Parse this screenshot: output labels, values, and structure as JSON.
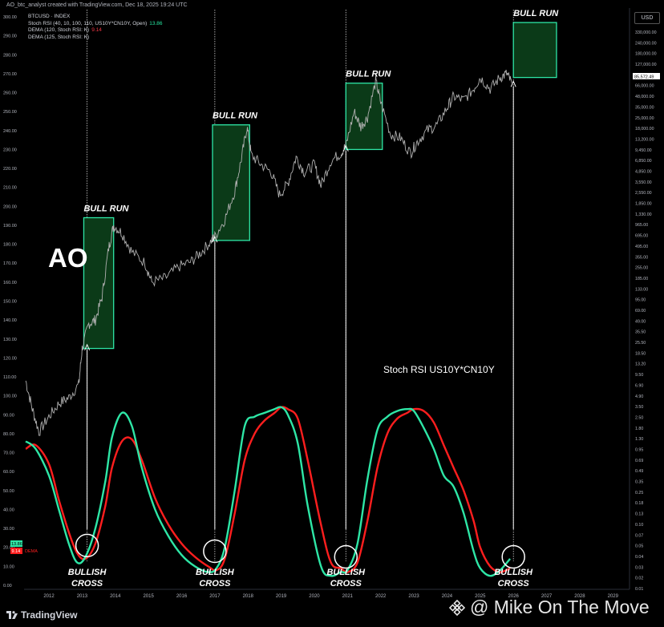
{
  "header": {
    "credit": "AO_btc_analyst created with TradingView.com, Dec 18, 2025 19:24 UTC",
    "currency_badge": "USD"
  },
  "legend": {
    "symbol": "BTCUSD · INDEX",
    "stoch": "Stoch RSI (40, 10, 100, 110, US10Y*CN10Y, Open)",
    "stoch_value": "13.86",
    "dema1": "DEMA (120, Stoch RSI: K)",
    "dema1_value": "9.14",
    "dema2": "DEMA (125, Stoch RSI: K)"
  },
  "annotations": {
    "bull_run": "BULL RUN",
    "bullish_cross_line1": "BULLISH",
    "bullish_cross_line2": "CROSS",
    "ao": "AO",
    "indicator_label": "Stoch RSI US10Y*CN10Y"
  },
  "badges": {
    "stoch_value": "13.86",
    "dema_value": "9.14",
    "dema_name": "DEMA",
    "price_now": "85,572.49"
  },
  "footer": {
    "brand": "TradingView",
    "watermark": "@ Mike On The Move"
  },
  "colors": {
    "stoch_line": "#2ee6a6",
    "dema_line": "#ff1e1e",
    "bull_box_fill": "#0b3a18",
    "bull_box_border": "#2ee6a6",
    "price_line": "#b0b0b0"
  },
  "chart_data": {
    "type": "line",
    "x_axis": {
      "label": "",
      "ticks": [
        "2012",
        "2013",
        "2014",
        "2015",
        "2016",
        "2017",
        "2018",
        "2019",
        "2020",
        "2021",
        "2022",
        "2023",
        "2024",
        "2025",
        "2026",
        "2027",
        "2028",
        "2029"
      ],
      "range": [
        2011.25,
        2029.5
      ]
    },
    "y_axis_left": {
      "scale": "linear",
      "range": [
        0,
        300
      ],
      "ticks": [
        "0.00",
        "10.00",
        "20.00",
        "30.00",
        "40.00",
        "50.00",
        "60.00",
        "70.00",
        "80.00",
        "90.00",
        "100.00",
        "110.00",
        "120.00",
        "130.00",
        "140.00",
        "150.00",
        "160.00",
        "170.00",
        "180.00",
        "190.00",
        "200.00",
        "210.00",
        "220.00",
        "230.00",
        "240.00",
        "250.00",
        "260.00",
        "270.00",
        "280.00",
        "290.00",
        "300.00"
      ]
    },
    "y_axis_right": {
      "scale": "log",
      "ticks": [
        "330,000.00",
        "240,000.00",
        "180,000.00",
        "127,000.00",
        "90,000.00",
        "66,000.00",
        "48,000.00",
        "35,000.00",
        "25,000.00",
        "18,000.00",
        "13,200.00",
        "9,450.00",
        "6,850.00",
        "4,850.00",
        "3,550.00",
        "2,550.00",
        "1,850.00",
        "1,330.00",
        "965.00",
        "695.00",
        "495.00",
        "355.00",
        "255.00",
        "185.00",
        "133.00",
        "95.00",
        "69.00",
        "49.00",
        "35.50",
        "25.50",
        "18.50",
        "13.20",
        "9.50",
        "6.90",
        "4.90",
        "3.50",
        "2.50",
        "1.80",
        "1.30",
        "0.95",
        "0.69",
        "0.49",
        "0.35",
        "0.25",
        "0.18",
        "0.13",
        "0.10",
        "0.07",
        "0.05",
        "0.04",
        "0.03",
        "0.02",
        "0.01"
      ]
    },
    "series": [
      {
        "name": "Stoch RSI",
        "x": [
          2011.3,
          2011.6,
          2012.0,
          2012.3,
          2012.6,
          2012.85,
          2013.1,
          2013.4,
          2013.7,
          2013.9,
          2014.2,
          2014.5,
          2014.8,
          2015.2,
          2015.6,
          2016.0,
          2016.4,
          2016.8,
          2017.05,
          2017.3,
          2017.6,
          2017.9,
          2018.2,
          2018.5,
          2018.8,
          2019.0,
          2019.2,
          2019.5,
          2019.8,
          2020.2,
          2020.5,
          2020.8,
          2021.0,
          2021.3,
          2021.6,
          2021.9,
          2022.2,
          2022.5,
          2022.8,
          2023.0,
          2023.3,
          2023.6,
          2023.9,
          2024.2,
          2024.5,
          2024.8,
          2025.0,
          2025.3,
          2025.6,
          2025.9
        ],
        "values": [
          76,
          72,
          58,
          40,
          22,
          12,
          15,
          30,
          55,
          78,
          91,
          84,
          62,
          40,
          26,
          16,
          10,
          7,
          9,
          20,
          50,
          84,
          89,
          91,
          93,
          94,
          90,
          75,
          42,
          10,
          5,
          7,
          8,
          22,
          56,
          82,
          89,
          92,
          93,
          92,
          83,
          72,
          58,
          52,
          38,
          18,
          9,
          5,
          8,
          14
        ]
      },
      {
        "name": "DEMA",
        "x": [
          2011.3,
          2011.6,
          2012.0,
          2012.3,
          2012.6,
          2012.85,
          2013.1,
          2013.4,
          2013.7,
          2013.9,
          2014.2,
          2014.5,
          2014.8,
          2015.2,
          2015.6,
          2016.0,
          2016.4,
          2016.8,
          2017.05,
          2017.3,
          2017.6,
          2017.9,
          2018.2,
          2018.5,
          2018.8,
          2019.0,
          2019.2,
          2019.5,
          2019.8,
          2020.2,
          2020.5,
          2020.8,
          2021.0,
          2021.3,
          2021.6,
          2021.9,
          2022.2,
          2022.5,
          2022.8,
          2023.0,
          2023.3,
          2023.6,
          2023.9,
          2024.2,
          2024.5,
          2024.8,
          2025.0,
          2025.3,
          2025.6,
          2025.9
        ],
        "values": [
          72,
          74,
          64,
          45,
          28,
          17,
          14,
          22,
          42,
          62,
          76,
          77,
          66,
          46,
          32,
          22,
          15,
          10,
          8,
          14,
          38,
          66,
          80,
          87,
          91,
          94,
          93,
          88,
          66,
          32,
          12,
          9,
          7,
          12,
          34,
          62,
          80,
          88,
          91,
          93,
          92,
          86,
          74,
          62,
          50,
          34,
          20,
          10,
          7,
          9
        ]
      }
    ],
    "price_series": {
      "name": "BTCUSD",
      "x": [
        2011.3,
        2011.5,
        2011.7,
        2012.0,
        2012.3,
        2012.6,
        2012.9,
        2013.0,
        2013.2,
        2013.4,
        2013.6,
        2013.8,
        2013.95,
        2014.2,
        2014.5,
        2014.9,
        2015.1,
        2015.5,
        2015.9,
        2016.3,
        2016.6,
        2016.9,
        2017.0,
        2017.3,
        2017.6,
        2017.8,
        2017.97,
        2018.1,
        2018.4,
        2018.7,
        2018.95,
        2019.2,
        2019.45,
        2019.7,
        2020.0,
        2020.2,
        2020.5,
        2020.8,
        2020.95,
        2021.2,
        2021.4,
        2021.6,
        2021.85,
        2022.0,
        2022.3,
        2022.6,
        2022.9,
        2023.1,
        2023.4,
        2023.7,
        2024.0,
        2024.2,
        2024.5,
        2024.8,
        2025.0,
        2025.3,
        2025.6,
        2025.8,
        2025.95
      ],
      "values": [
        108,
        93,
        81,
        89,
        96,
        99,
        106,
        125,
        138,
        140,
        152,
        178,
        190,
        186,
        176,
        170,
        160,
        162,
        168,
        171,
        176,
        182,
        184,
        193,
        208,
        225,
        242,
        227,
        222,
        218,
        206,
        212,
        226,
        218,
        222,
        211,
        224,
        228,
        232,
        250,
        242,
        247,
        266,
        255,
        238,
        236,
        228,
        234,
        240,
        243,
        252,
        258,
        256,
        262,
        268,
        262,
        268,
        270,
        265
      ],
      "note": "plotted on left linear scale as drawn"
    },
    "bull_run_boxes": [
      {
        "x0": 2013.05,
        "x1": 2013.95,
        "y0": 125,
        "y1": 194
      },
      {
        "x0": 2016.93,
        "x1": 2018.05,
        "y0": 182,
        "y1": 243
      },
      {
        "x0": 2020.95,
        "x1": 2022.05,
        "y0": 230,
        "y1": 265
      },
      {
        "x0": 2026.0,
        "x1": 2027.3,
        "y0": 268,
        "y1": 297
      }
    ],
    "bullish_crosses": [
      2013.15,
      2017.0,
      2020.95,
      2026.0
    ],
    "grid": false,
    "legend_position": "top-left"
  }
}
